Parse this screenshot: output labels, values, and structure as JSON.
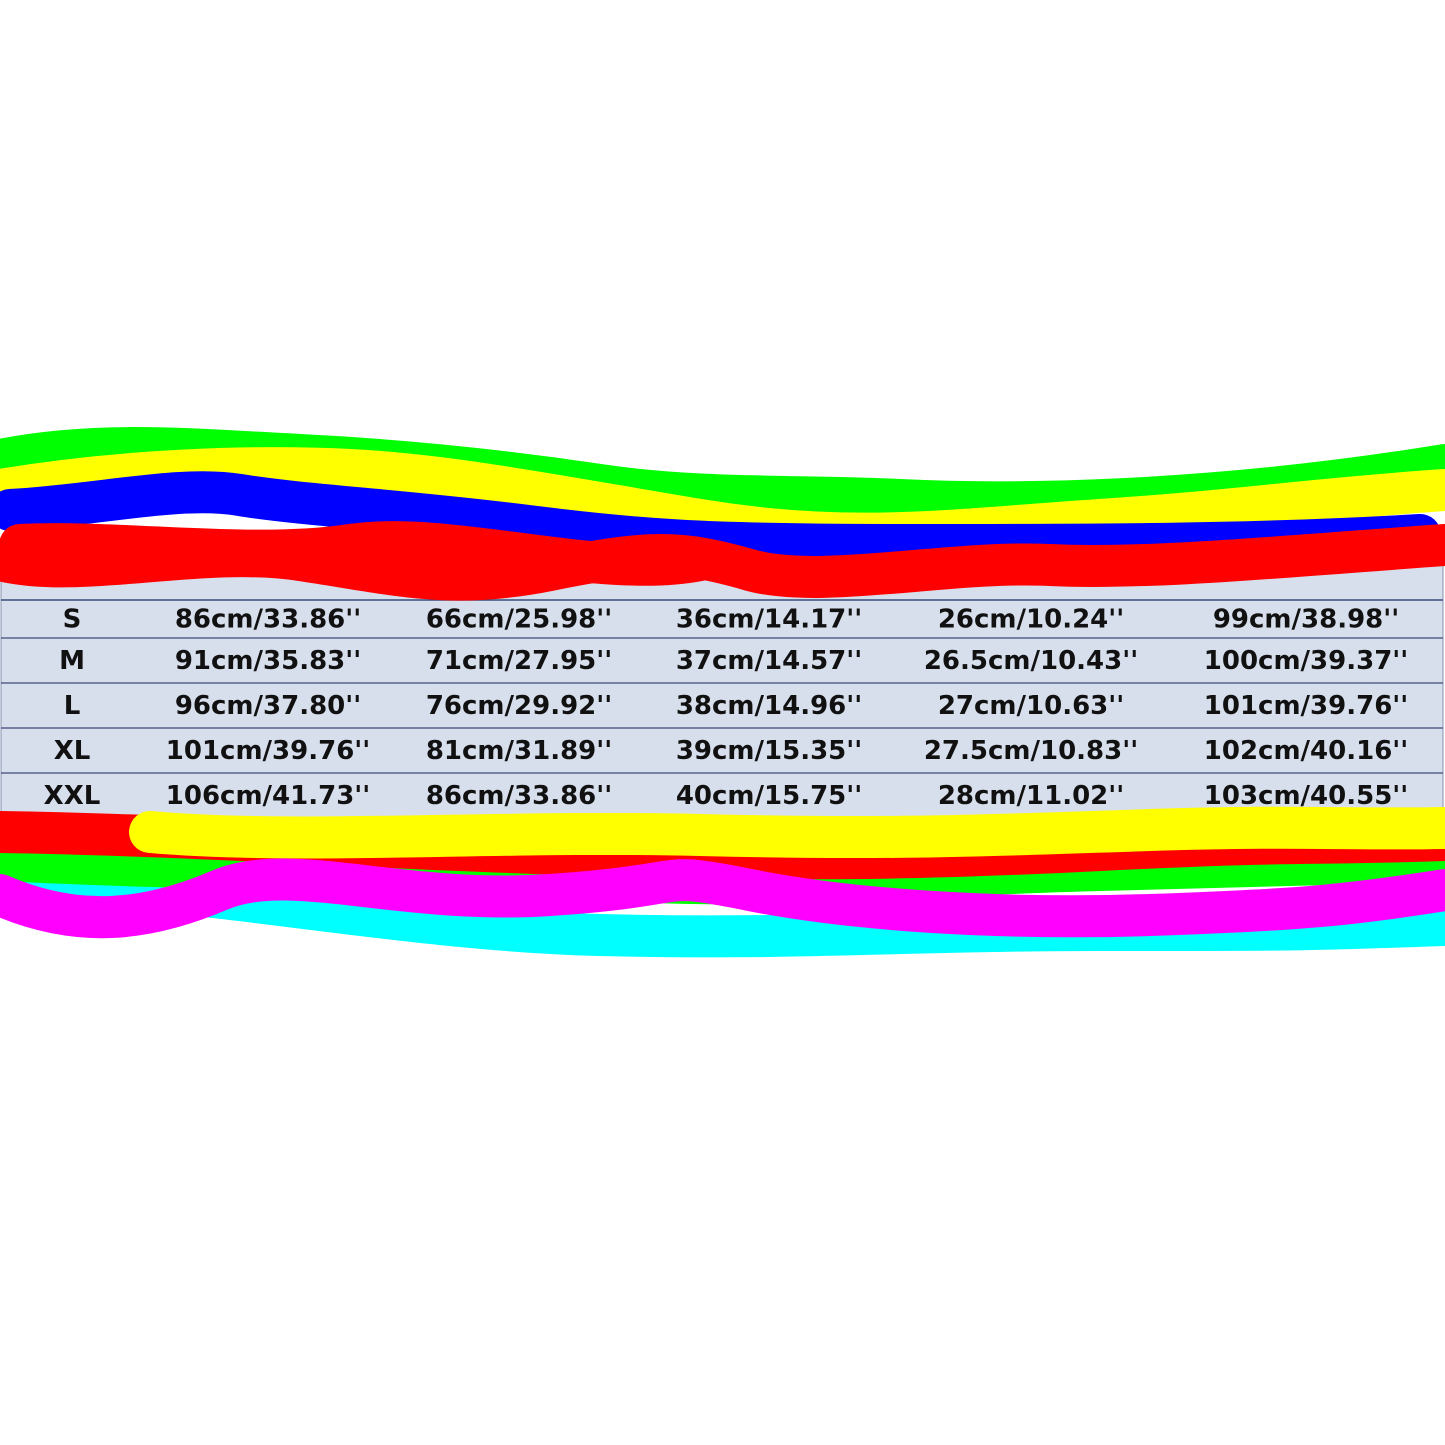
{
  "table": {
    "rows": [
      [
        "S",
        "86cm/33.86''",
        "66cm/25.98''",
        "36cm/14.17''",
        "26cm/10.24''",
        "99cm/38.98''"
      ],
      [
        "M",
        "91cm/35.83''",
        "71cm/27.95''",
        "37cm/14.57''",
        "26.5cm/10.43''",
        "100cm/39.37''"
      ],
      [
        "L",
        "96cm/37.80''",
        "76cm/29.92''",
        "38cm/14.96''",
        "27cm/10.63''",
        "101cm/39.76''"
      ],
      [
        "XL",
        "101cm/39.76''",
        "81cm/31.89''",
        "39cm/15.35''",
        "27.5cm/10.83''",
        "102cm/40.16''"
      ],
      [
        "XXL",
        "106cm/41.73''",
        "86cm/33.86''",
        "40cm/15.75''",
        "28cm/11.02''",
        "103cm/40.55''"
      ]
    ]
  }
}
